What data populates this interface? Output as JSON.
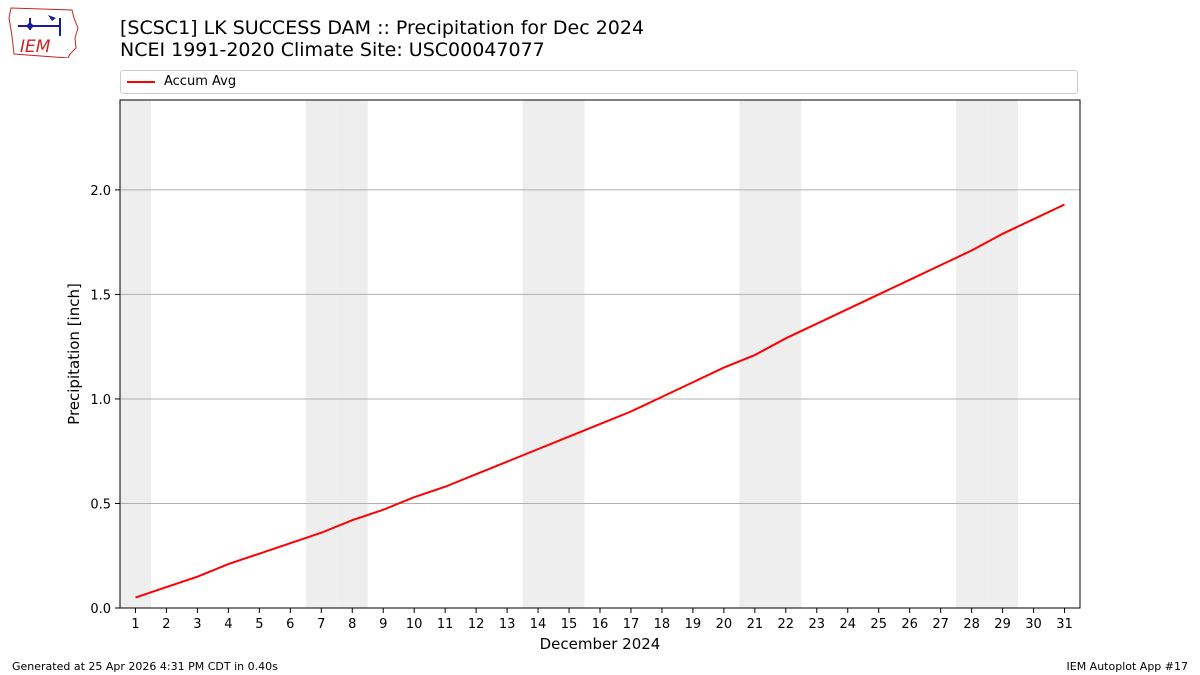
{
  "header": {
    "logo_text": "IEM",
    "title_line1": "[SCSC1] LK SUCCESS DAM :: Precipitation for Dec 2024",
    "title_line2": "NCEI 1991-2020 Climate Site: USC00047077"
  },
  "footer": {
    "generated": "Generated at 25 Apr 2026 4:31 PM CDT in 0.40s",
    "app": "IEM Autoplot App #17"
  },
  "colors": {
    "line": "#ff0000",
    "weekend_band": "#eeeeee",
    "grid": "#b0b0b0"
  },
  "chart_data": {
    "type": "line",
    "title": "[SCSC1] LK SUCCESS DAM :: Precipitation for Dec 2024",
    "subtitle": "NCEI 1991-2020 Climate Site: USC00047077",
    "xlabel": "December 2024",
    "ylabel": "Precipitation [inch]",
    "x": [
      1,
      2,
      3,
      4,
      5,
      6,
      7,
      8,
      9,
      10,
      11,
      12,
      13,
      14,
      15,
      16,
      17,
      18,
      19,
      20,
      21,
      22,
      23,
      24,
      25,
      26,
      27,
      28,
      29,
      30,
      31
    ],
    "xlim": [
      0.5,
      31.5
    ],
    "ylim": [
      0,
      2.43
    ],
    "yticks": [
      0.0,
      0.5,
      1.0,
      1.5,
      2.0
    ],
    "ytick_labels": [
      "0.0",
      "0.5",
      "1.0",
      "1.5",
      "2.0"
    ],
    "grid": "horizontal",
    "legend_position": "top",
    "weekend_days": [
      1,
      7,
      8,
      14,
      15,
      21,
      22,
      28,
      29
    ],
    "series": [
      {
        "name": "Accum Avg",
        "values": [
          0.05,
          0.1,
          0.15,
          0.21,
          0.26,
          0.31,
          0.36,
          0.42,
          0.47,
          0.53,
          0.58,
          0.64,
          0.7,
          0.76,
          0.82,
          0.88,
          0.94,
          1.01,
          1.08,
          1.15,
          1.21,
          1.29,
          1.36,
          1.43,
          1.5,
          1.57,
          1.64,
          1.71,
          1.79,
          1.86,
          1.93
        ]
      }
    ]
  }
}
